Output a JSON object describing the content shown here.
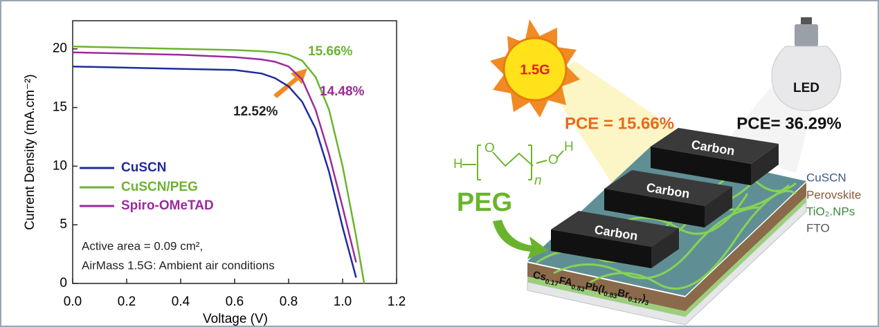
{
  "chart_data": {
    "type": "line",
    "xlabel": "Voltage (V)",
    "ylabel": "Current Density (mA.cm⁻²)",
    "x": [
      0,
      0.2,
      0.4,
      0.6,
      0.7,
      0.75,
      0.8,
      0.85,
      0.9,
      0.95,
      1.0,
      1.05,
      1.08
    ],
    "series": [
      {
        "name": "CuSCN",
        "color": "#1f2a9c",
        "values": [
          18.5,
          18.4,
          18.3,
          18.2,
          17.9,
          17.5,
          16.8,
          15.5,
          13.2,
          9.5,
          4.8,
          0.5,
          null
        ]
      },
      {
        "name": "CuSCN/PEG",
        "color": "#6ab42d",
        "values": [
          20.2,
          20.1,
          20.0,
          19.9,
          19.8,
          19.7,
          19.5,
          19.0,
          17.6,
          14.8,
          10.0,
          4.0,
          0
        ]
      },
      {
        "name": "Spiro-OMeTAD",
        "color": "#9b2a9b",
        "values": [
          19.7,
          19.6,
          19.5,
          19.3,
          19.1,
          18.9,
          18.5,
          17.4,
          14.8,
          11.0,
          6.5,
          1.8,
          null
        ]
      }
    ],
    "xlim": [
      0,
      1.2
    ],
    "xticks": [
      {
        "value": 0,
        "label": "0.0"
      },
      0.2,
      0.4,
      0.6,
      0.8,
      {
        "value": 1,
        "label": "1.0"
      },
      1.2
    ],
    "ylim": [
      0,
      22.4
    ],
    "yticks": [
      0,
      5,
      10,
      15,
      20
    ],
    "grid": false,
    "legend": "lower left",
    "annotations": [
      {
        "text": "15.66%",
        "color": "#6ab42d"
      },
      {
        "text": "14.48%",
        "color": "#9b2a9b"
      },
      {
        "text": "12.52%",
        "color": "#222222"
      }
    ],
    "notes": [
      "Active area = 0.09 cm²,",
      "AirMass 1.5G: Ambient air conditions"
    ]
  },
  "diagram": {
    "sun_label": "1.5G",
    "bulb_label": "LED",
    "pce_sun": "PCE = 15.66%",
    "pce_led": "PCE= 36.29%",
    "carbon": [
      "Carbon",
      "Carbon",
      "Carbon"
    ],
    "layers": [
      "CuSCN",
      "Perovskite",
      "TiO₂.NPs",
      "FTO"
    ],
    "peg": "PEG",
    "peg_structure": {
      "h_left": "H",
      "o_left": "O",
      "n": "n",
      "o_right": "O",
      "h_right": "H"
    },
    "formula": [
      "Cs",
      "0.17",
      "FA",
      "0.83",
      "Pb(I",
      "0.83",
      "Br",
      "0.17",
      ")",
      "3"
    ]
  }
}
